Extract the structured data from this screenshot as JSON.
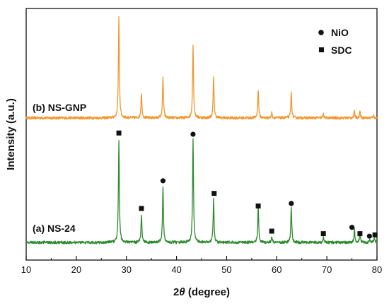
{
  "chart_data": {
    "type": "line",
    "xlabel_pre": "2",
    "xlabel_theta": "θ",
    "xlabel_post": " (degree)",
    "ylabel": "Intensity (a.u.)",
    "xlim": [
      10,
      80
    ],
    "ylim": [
      0,
      100
    ],
    "x_ticks": [
      "10",
      "20",
      "30",
      "40",
      "50",
      "60",
      "70",
      "80"
    ],
    "grid": false,
    "legend": {
      "placement": "top-right",
      "items": [
        {
          "label": "NiO",
          "marker": "circle"
        },
        {
          "label": "SDC",
          "marker": "square"
        }
      ]
    },
    "series": [
      {
        "name": "(b) NS-GNP",
        "color": "#f3962e",
        "baseline": 56.5,
        "peaks": [
          {
            "x": 28.5,
            "h": 40
          },
          {
            "x": 33.0,
            "h": 10
          },
          {
            "x": 37.3,
            "h": 16
          },
          {
            "x": 43.3,
            "h": 29
          },
          {
            "x": 47.4,
            "h": 16
          },
          {
            "x": 56.3,
            "h": 11
          },
          {
            "x": 59.0,
            "h": 2
          },
          {
            "x": 62.9,
            "h": 10
          },
          {
            "x": 69.3,
            "h": 1.5
          },
          {
            "x": 75.5,
            "h": 2.5
          },
          {
            "x": 76.6,
            "h": 2.5
          },
          {
            "x": 79.3,
            "h": 1
          }
        ]
      },
      {
        "name": "(a) NS-24",
        "color": "#2e8b2e",
        "baseline": 7,
        "peaks": [
          {
            "x": 28.5,
            "h": 41
          },
          {
            "x": 33.0,
            "h": 11
          },
          {
            "x": 37.3,
            "h": 22
          },
          {
            "x": 43.3,
            "h": 41
          },
          {
            "x": 47.4,
            "h": 17
          },
          {
            "x": 56.3,
            "h": 14
          },
          {
            "x": 59.0,
            "h": 2.5
          },
          {
            "x": 62.9,
            "h": 14
          },
          {
            "x": 69.3,
            "h": 2
          },
          {
            "x": 75.5,
            "h": 5
          },
          {
            "x": 76.6,
            "h": 3
          },
          {
            "x": 78.5,
            "h": 1
          },
          {
            "x": 79.5,
            "h": 2
          }
        ]
      }
    ],
    "phase_markers": [
      {
        "phase": "SDC",
        "marker": "square",
        "x": 28.5,
        "y": 50.5
      },
      {
        "phase": "SDC",
        "marker": "square",
        "x": 33.0,
        "y": 20.5
      },
      {
        "phase": "NiO",
        "marker": "circle",
        "x": 37.3,
        "y": 31.5
      },
      {
        "phase": "NiO",
        "marker": "circle",
        "x": 43.3,
        "y": 50.0
      },
      {
        "phase": "SDC",
        "marker": "square",
        "x": 47.5,
        "y": 26.5
      },
      {
        "phase": "SDC",
        "marker": "square",
        "x": 56.3,
        "y": 21.5
      },
      {
        "phase": "SDC",
        "marker": "square",
        "x": 59.0,
        "y": 11.5
      },
      {
        "phase": "NiO",
        "marker": "circle",
        "x": 62.9,
        "y": 22.5
      },
      {
        "phase": "SDC",
        "marker": "square",
        "x": 69.3,
        "y": 10.5
      },
      {
        "phase": "NiO",
        "marker": "circle",
        "x": 75.0,
        "y": 13.0
      },
      {
        "phase": "SDC",
        "marker": "square",
        "x": 76.6,
        "y": 10.5
      },
      {
        "phase": "NiO",
        "marker": "circle",
        "x": 78.5,
        "y": 9.5
      },
      {
        "phase": "SDC",
        "marker": "square",
        "x": 79.6,
        "y": 10.0
      }
    ]
  }
}
